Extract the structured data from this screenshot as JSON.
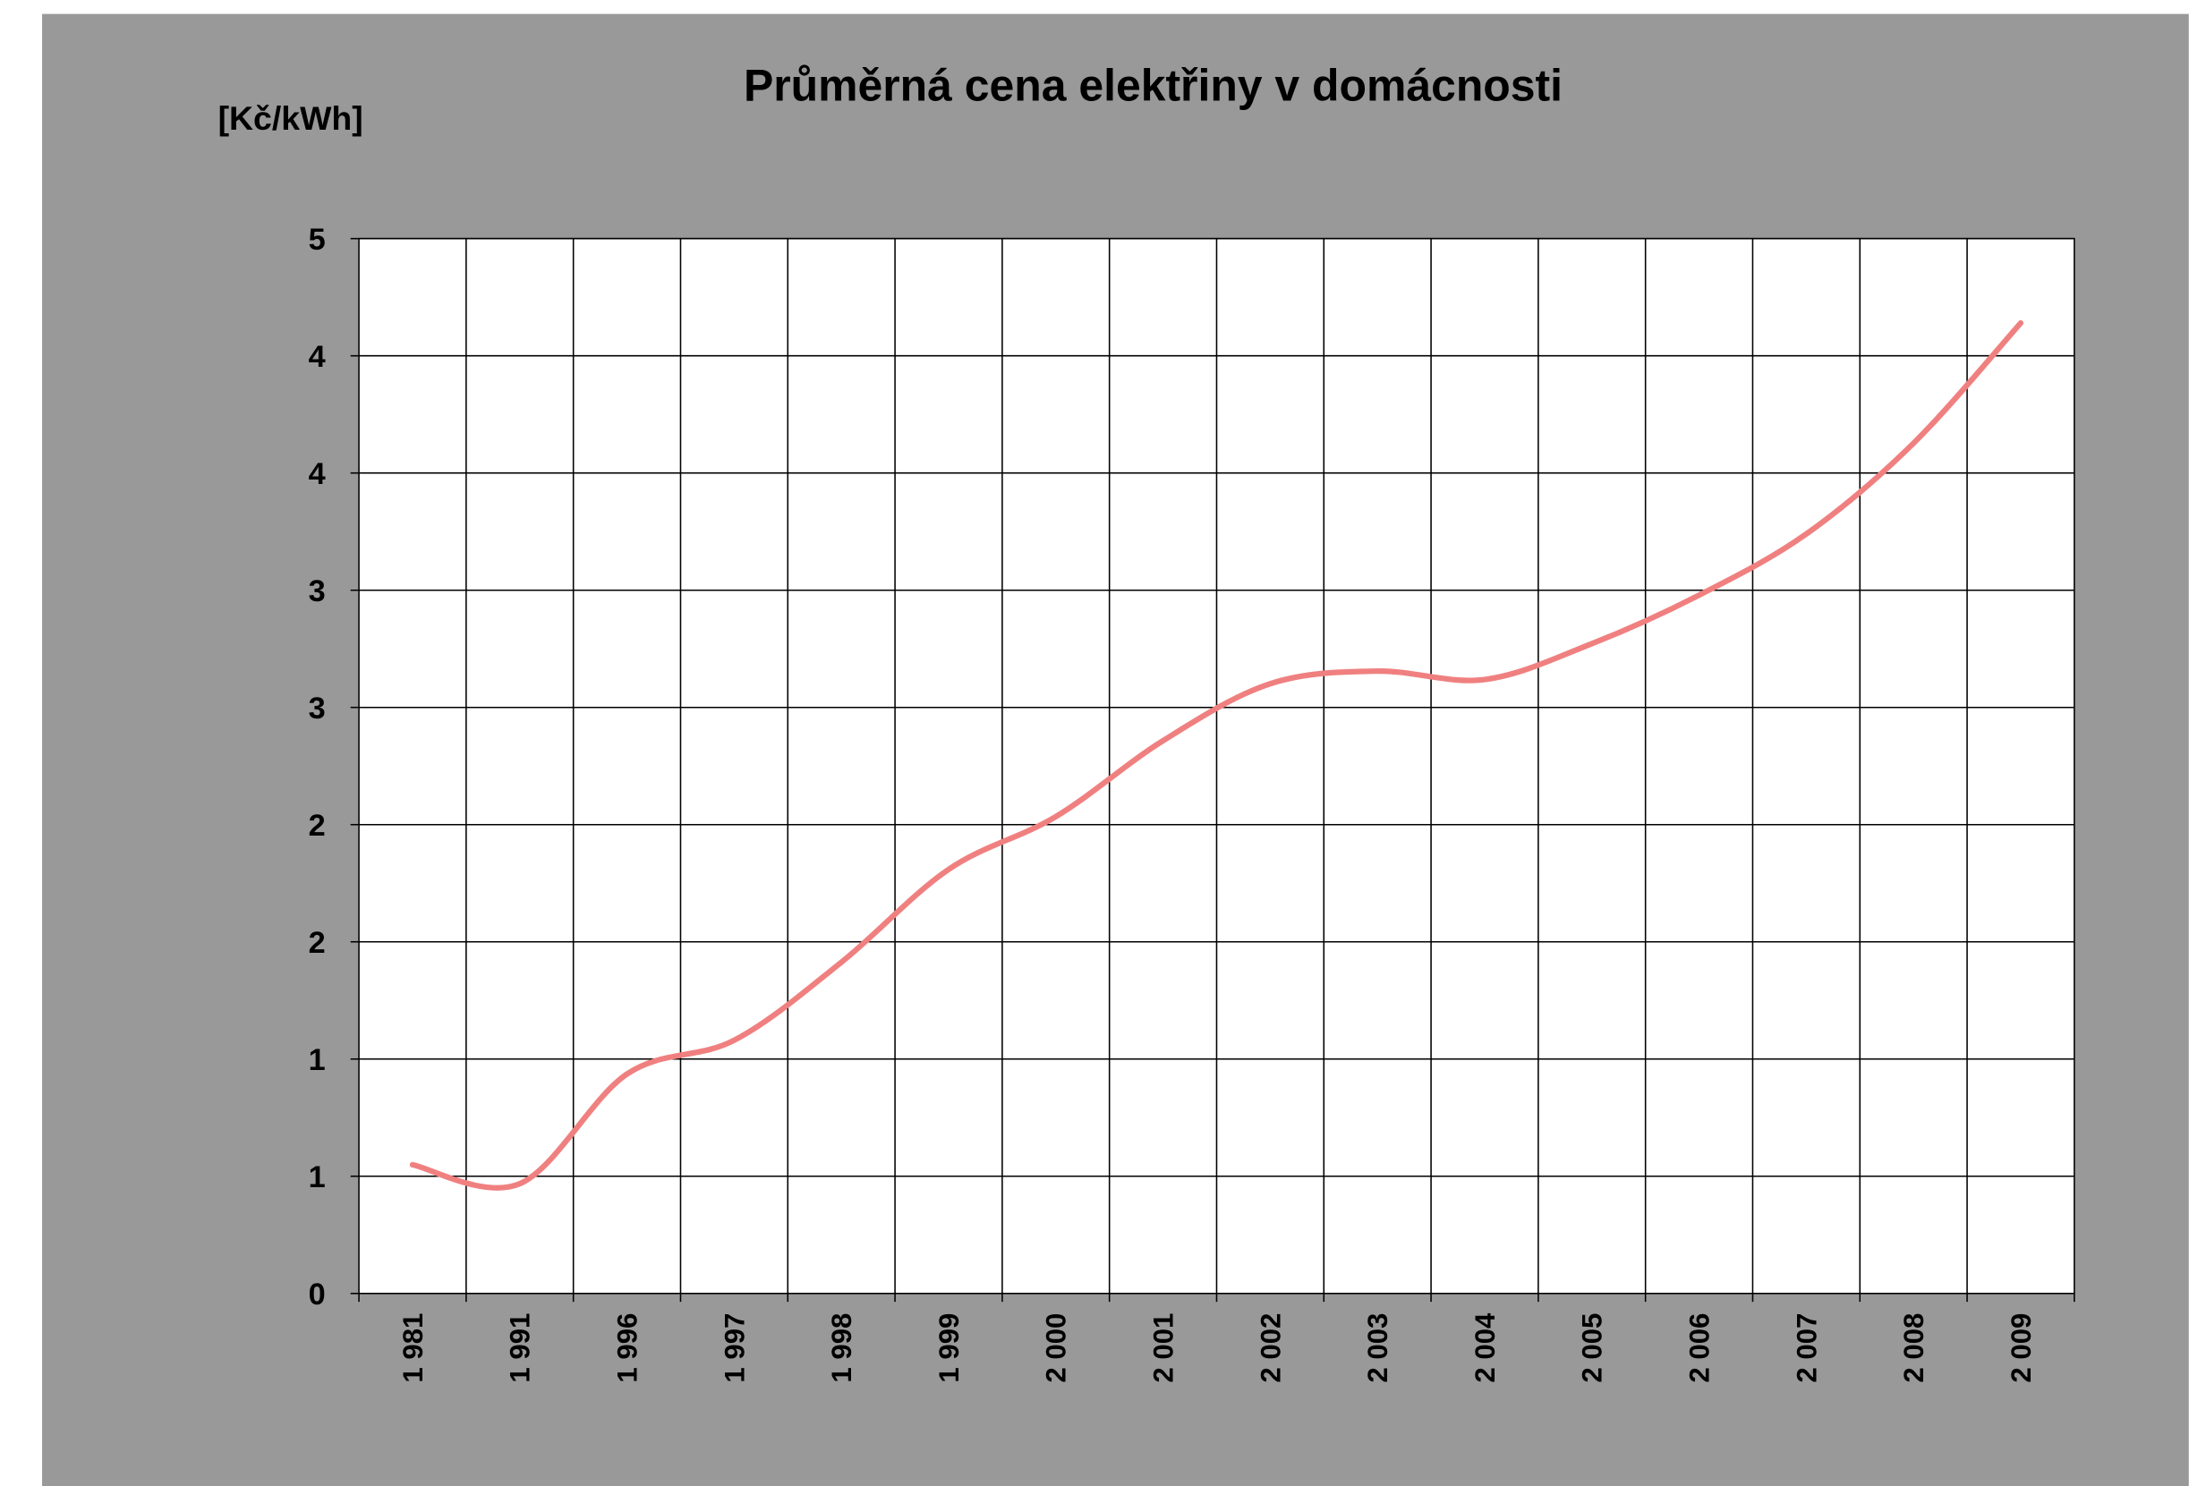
{
  "chart_data": {
    "type": "line",
    "title": "Průměrná cena elektřiny v domácnosti",
    "y_label": "[Kč/kWh]",
    "categories": [
      "1 981",
      "1 991",
      "1 996",
      "1 997",
      "1 998",
      "1 999",
      "2 000",
      "2 001",
      "2 002",
      "2 003",
      "2 004",
      "2 005",
      "2 006",
      "2 007",
      "2 008",
      "2 009"
    ],
    "series": [
      {
        "name": "Průměrná cena",
        "color": "#f08080",
        "values": [
          0.61,
          0.52,
          1.04,
          1.2,
          1.57,
          2.01,
          2.26,
          2.62,
          2.89,
          2.95,
          2.91,
          3.08,
          3.31,
          3.6,
          4.03,
          4.6
        ]
      }
    ],
    "ylim": [
      0,
      5
    ],
    "yticks": [
      0,
      {
        "value": 0.5556,
        "label": "1"
      },
      {
        "value": 1.1111,
        "label": "1"
      },
      {
        "value": 1.6667,
        "label": "2"
      },
      {
        "value": 2.2222,
        "label": "2"
      },
      {
        "value": 2.7778,
        "label": "3"
      },
      {
        "value": 3.3333,
        "label": "3"
      },
      {
        "value": 3.8889,
        "label": "4"
      },
      {
        "value": 4.4444,
        "label": "4"
      },
      5
    ],
    "grid": true
  }
}
